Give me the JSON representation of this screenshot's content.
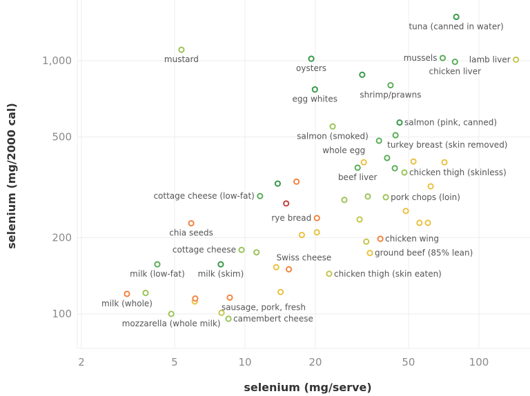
{
  "chart_data": {
    "type": "scatter",
    "title": "",
    "xlabel": "selenium (mg/serve)",
    "ylabel": "selenium (mg/2000 cal)",
    "x_scale": "log",
    "y_scale": "log",
    "xlim": [
      1.9,
      170
    ],
    "ylim": [
      73,
      1740
    ],
    "grid": true,
    "x_ticks": [
      {
        "v": 2,
        "label": "2"
      },
      {
        "v": 5,
        "label": "5"
      },
      {
        "v": 10,
        "label": "10"
      },
      {
        "v": 20,
        "label": "20"
      },
      {
        "v": 50,
        "label": "50"
      },
      {
        "v": 100,
        "label": "100"
      }
    ],
    "y_ticks": [
      {
        "v": 100,
        "label": "100"
      },
      {
        "v": 200,
        "label": "200"
      },
      {
        "v": 500,
        "label": "500"
      },
      {
        "v": 1000,
        "label": "1,000"
      }
    ],
    "colors": {
      "dark_green": "#3a9a4a",
      "green": "#5cae5a",
      "light_green": "#9cc45a",
      "yellow_green": "#c5c64e",
      "yellow": "#e9c244",
      "orange": "#f08442",
      "red": "#c2413f"
    },
    "points": [
      {
        "x": 80,
        "y": 1490,
        "color": "#3a9a4a",
        "label": "tuna (canned in water)",
        "label_side": "below"
      },
      {
        "x": 70,
        "y": 1025,
        "color": "#5cae5a",
        "label": "mussels",
        "label_side": "left"
      },
      {
        "x": 79,
        "y": 990,
        "color": "#5cae5a",
        "label": "chicken liver",
        "label_side": "below"
      },
      {
        "x": 144,
        "y": 1010,
        "color": "#c5c64e",
        "label": "lamb liver",
        "label_side": "left"
      },
      {
        "x": 5.35,
        "y": 1105,
        "color": "#9cc45a",
        "label": "mustard",
        "label_side": "below"
      },
      {
        "x": 19.2,
        "y": 1018,
        "color": "#3a9a4a",
        "label": "oysters",
        "label_side": "below"
      },
      {
        "x": 31.7,
        "y": 880,
        "color": "#3a9a4a",
        "label": "",
        "label_side": ""
      },
      {
        "x": 19.9,
        "y": 770,
        "color": "#3a9a4a",
        "label": "egg whites",
        "label_side": "below"
      },
      {
        "x": 41.9,
        "y": 800,
        "color": "#5cae5a",
        "label": "shrimp/prawns",
        "label_side": "below"
      },
      {
        "x": 45.8,
        "y": 570,
        "color": "#3a9a4a",
        "label": "salmon (pink, canned)",
        "label_side": "right"
      },
      {
        "x": 23.7,
        "y": 550,
        "color": "#9cc45a",
        "label": "salmon (smoked)",
        "label_side": "below"
      },
      {
        "x": 44,
        "y": 508,
        "color": "#5cae5a",
        "label": "turkey breast (skin removed)",
        "label_side": "below-right"
      },
      {
        "x": 37.4,
        "y": 483,
        "color": "#5cae5a",
        "label": "whole egg",
        "label_side": "below-left"
      },
      {
        "x": 40.5,
        "y": 413,
        "color": "#5cae5a",
        "label": "",
        "label_side": ""
      },
      {
        "x": 32.2,
        "y": 397,
        "color": "#e9c244",
        "label": "",
        "label_side": ""
      },
      {
        "x": 52.5,
        "y": 400,
        "color": "#e9c244",
        "label": "",
        "label_side": ""
      },
      {
        "x": 71.2,
        "y": 397,
        "color": "#e9c244",
        "label": "",
        "label_side": ""
      },
      {
        "x": 30.3,
        "y": 378,
        "color": "#5cae5a",
        "label": "beef liver",
        "label_side": "below"
      },
      {
        "x": 43.7,
        "y": 376,
        "color": "#5cae5a",
        "label": "",
        "label_side": ""
      },
      {
        "x": 48,
        "y": 362,
        "color": "#9cc45a",
        "label": "chicken thigh (skinless)",
        "label_side": "right"
      },
      {
        "x": 62.2,
        "y": 319,
        "color": "#e9c244",
        "label": "",
        "label_side": ""
      },
      {
        "x": 13.8,
        "y": 327,
        "color": "#3a9a4a",
        "label": "",
        "label_side": ""
      },
      {
        "x": 16.6,
        "y": 333,
        "color": "#f08442",
        "label": "",
        "label_side": ""
      },
      {
        "x": 11.6,
        "y": 292,
        "color": "#5cae5a",
        "label": "cottage cheese (low-fat)",
        "label_side": "left"
      },
      {
        "x": 15,
        "y": 273,
        "color": "#c2413f",
        "label": "",
        "label_side": ""
      },
      {
        "x": 26.6,
        "y": 282,
        "color": "#9cc45a",
        "label": "",
        "label_side": ""
      },
      {
        "x": 33.5,
        "y": 291,
        "color": "#9cc45a",
        "label": "",
        "label_side": ""
      },
      {
        "x": 40,
        "y": 289,
        "color": "#9cc45a",
        "label": "pork chops (loin)",
        "label_side": "right"
      },
      {
        "x": 48.7,
        "y": 255,
        "color": "#e9c244",
        "label": "",
        "label_side": ""
      },
      {
        "x": 20.3,
        "y": 239,
        "color": "#f08442",
        "label": "rye bread",
        "label_side": "left"
      },
      {
        "x": 30.9,
        "y": 236,
        "color": "#c5c64e",
        "label": "",
        "label_side": ""
      },
      {
        "x": 55.7,
        "y": 229,
        "color": "#e9c244",
        "label": "",
        "label_side": ""
      },
      {
        "x": 60.5,
        "y": 229,
        "color": "#e9c244",
        "label": "",
        "label_side": ""
      },
      {
        "x": 5.89,
        "y": 228,
        "color": "#f08442",
        "label": "chia seeds",
        "label_side": "below"
      },
      {
        "x": 20.3,
        "y": 210,
        "color": "#e9c244",
        "label": "",
        "label_side": ""
      },
      {
        "x": 17.5,
        "y": 205,
        "color": "#e9c244",
        "label": "",
        "label_side": ""
      },
      {
        "x": 33,
        "y": 193,
        "color": "#c5c64e",
        "label": "",
        "label_side": ""
      },
      {
        "x": 37.9,
        "y": 198,
        "color": "#f08442",
        "label": "chicken wing",
        "label_side": "right"
      },
      {
        "x": 34.2,
        "y": 174,
        "color": "#e9c244",
        "label": "ground beef (85% lean)",
        "label_side": "right"
      },
      {
        "x": 9.67,
        "y": 179,
        "color": "#9cc45a",
        "label": "cottage cheese",
        "label_side": "left"
      },
      {
        "x": 11.2,
        "y": 175,
        "color": "#9cc45a",
        "label": "",
        "label_side": ""
      },
      {
        "x": 4.22,
        "y": 157,
        "color": "#5cae5a",
        "label": "milk (low-fat)",
        "label_side": "below"
      },
      {
        "x": 7.88,
        "y": 157,
        "color": "#3a9a4a",
        "label": "milk (skim)",
        "label_side": "below"
      },
      {
        "x": 13.6,
        "y": 153,
        "color": "#e9c244",
        "label": "",
        "label_side": ""
      },
      {
        "x": 15.4,
        "y": 150,
        "color": "#f08442",
        "label": "Swiss cheese",
        "label_side": "above-right"
      },
      {
        "x": 22.9,
        "y": 144,
        "color": "#c5c64e",
        "label": "chicken thigh (skin eaten)",
        "label_side": "right"
      },
      {
        "x": 14.2,
        "y": 122,
        "color": "#e9c244",
        "label": "",
        "label_side": ""
      },
      {
        "x": 3.13,
        "y": 120,
        "color": "#f08442",
        "label": "milk (whole)",
        "label_side": "below"
      },
      {
        "x": 3.76,
        "y": 121,
        "color": "#9cc45a",
        "label": "",
        "label_side": ""
      },
      {
        "x": 6.1,
        "y": 112,
        "color": "#e9c244",
        "label": "",
        "label_side": ""
      },
      {
        "x": 6.13,
        "y": 115,
        "color": "#f08442",
        "label": "",
        "label_side": ""
      },
      {
        "x": 8.61,
        "y": 116,
        "color": "#f08442",
        "label": "sausage, pork, fresh",
        "label_side": "below-right"
      },
      {
        "x": 4.84,
        "y": 100,
        "color": "#9cc45a",
        "label": "mozzarella (whole milk)",
        "label_side": "below"
      },
      {
        "x": 7.94,
        "y": 101,
        "color": "#c5c64e",
        "label": "",
        "label_side": ""
      },
      {
        "x": 8.5,
        "y": 95.7,
        "color": "#9cc45a",
        "label": "camembert cheese",
        "label_side": "right"
      }
    ]
  }
}
